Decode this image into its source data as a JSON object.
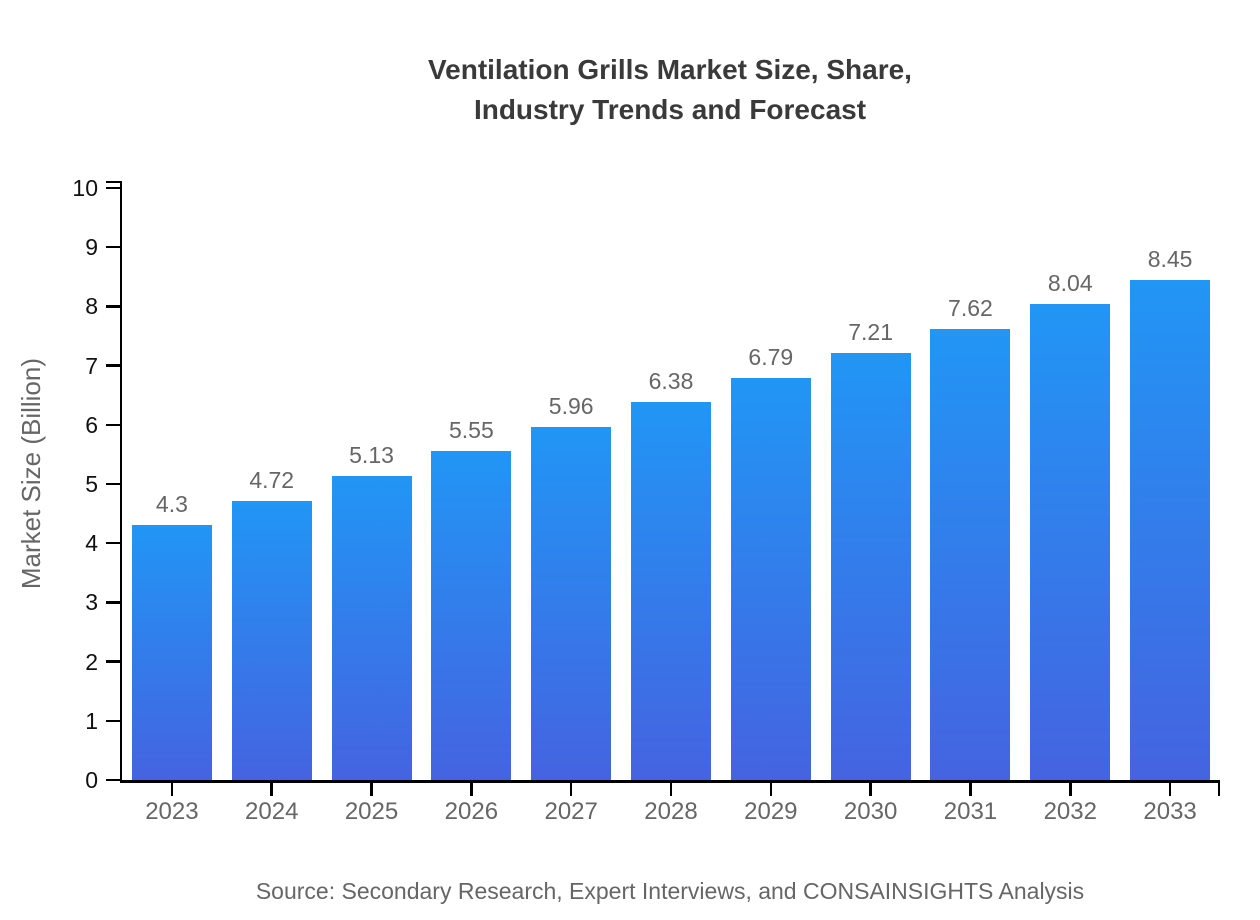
{
  "page": {
    "background": "#ffffff"
  },
  "chart_data": {
    "type": "bar",
    "title_lines": [
      "Ventilation Grills Market Size, Share,",
      "Industry Trends and Forecast"
    ],
    "ylabel": "Market Size (Billion)",
    "xlabel": "",
    "categories": [
      "2023",
      "2024",
      "2025",
      "2026",
      "2027",
      "2028",
      "2029",
      "2030",
      "2031",
      "2032",
      "2033"
    ],
    "values": [
      4.3,
      4.72,
      5.13,
      5.55,
      5.96,
      6.38,
      6.79,
      7.21,
      7.62,
      8.04,
      8.45
    ],
    "value_labels": [
      "4.3",
      "4.72",
      "5.13",
      "5.55",
      "5.96",
      "6.38",
      "6.79",
      "7.21",
      "7.62",
      "8.04",
      "8.45"
    ],
    "ylim": [
      0,
      10
    ],
    "ytick_step": 1,
    "ytick_labels": [
      "0",
      "1",
      "2",
      "3",
      "4",
      "5",
      "6",
      "7",
      "8",
      "9",
      "10"
    ],
    "grid": false,
    "legend": "none",
    "colors": {
      "bar_gradient_top": "#2196f5",
      "bar_gradient_bottom": "#4563e0",
      "axis": "#000000",
      "y_tick_label": "#111111",
      "x_tick_label": "#666666",
      "value_label": "#666666",
      "title": "#3a3a3a",
      "axis_label": "#666666",
      "source_text": "#666666"
    }
  },
  "source": {
    "text": "Source: Secondary Research, Expert Interviews, and CONSAINSIGHTS Analysis"
  }
}
